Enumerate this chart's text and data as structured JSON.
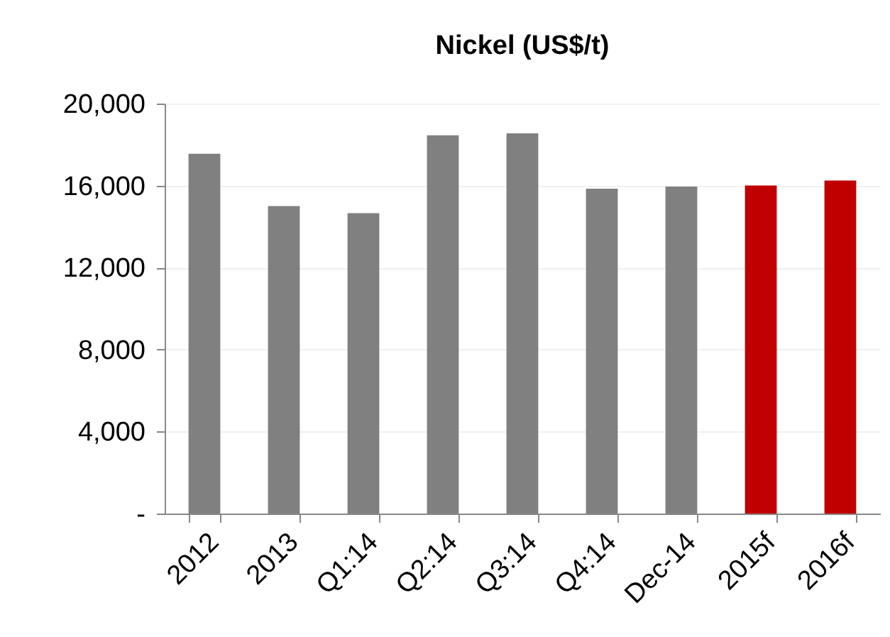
{
  "chart_data": {
    "type": "bar",
    "title": "Nickel (US$/t)",
    "categories": [
      "2012",
      "2013",
      "Q1:14",
      "Q2:14",
      "Q3:14",
      "Q4:14",
      "Dec-14",
      "2015f",
      "2016f"
    ],
    "values": [
      17550,
      15000,
      14650,
      18450,
      18550,
      15850,
      15950,
      16000,
      16250
    ],
    "colors": [
      "#808080",
      "#808080",
      "#808080",
      "#808080",
      "#808080",
      "#808080",
      "#808080",
      "#c00000",
      "#c00000"
    ],
    "ylim": [
      0,
      20000
    ],
    "yticks": [
      {
        "value": 0,
        "label": "-"
      },
      {
        "value": 4000,
        "label": "4,000"
      },
      {
        "value": 8000,
        "label": "8,000"
      },
      {
        "value": 12000,
        "label": "12,000"
      },
      {
        "value": 16000,
        "label": "16,000"
      },
      {
        "value": 20000,
        "label": "20,000"
      }
    ],
    "grid": "y"
  }
}
